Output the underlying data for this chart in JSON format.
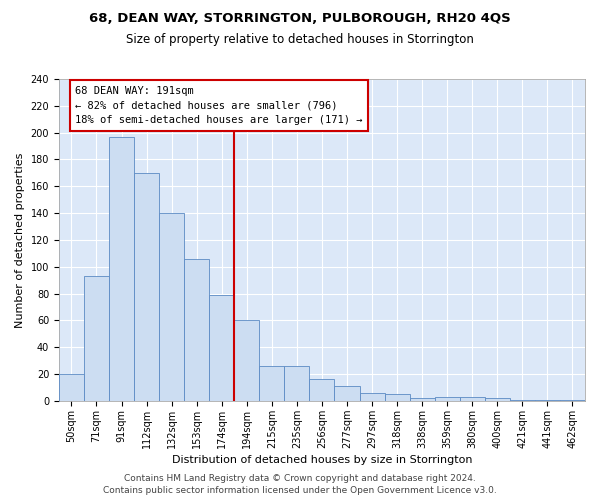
{
  "title": "68, DEAN WAY, STORRINGTON, PULBOROUGH, RH20 4QS",
  "subtitle": "Size of property relative to detached houses in Storrington",
  "xlabel": "Distribution of detached houses by size in Storrington",
  "ylabel": "Number of detached properties",
  "categories": [
    "50sqm",
    "71sqm",
    "91sqm",
    "112sqm",
    "132sqm",
    "153sqm",
    "174sqm",
    "194sqm",
    "215sqm",
    "235sqm",
    "256sqm",
    "277sqm",
    "297sqm",
    "318sqm",
    "338sqm",
    "359sqm",
    "380sqm",
    "400sqm",
    "421sqm",
    "441sqm",
    "462sqm"
  ],
  "values": [
    20,
    93,
    197,
    170,
    140,
    106,
    79,
    60,
    26,
    26,
    16,
    11,
    6,
    5,
    2,
    3,
    3,
    2,
    1,
    1,
    1
  ],
  "bar_color": "#ccddf2",
  "bar_edge_color": "#5b8ac4",
  "highlight_color": "#cc0000",
  "annotation_text": "68 DEAN WAY: 191sqm\n← 82% of detached houses are smaller (796)\n18% of semi-detached houses are larger (171) →",
  "annotation_box_color": "#cc0000",
  "ylim": [
    0,
    240
  ],
  "yticks": [
    0,
    20,
    40,
    60,
    80,
    100,
    120,
    140,
    160,
    180,
    200,
    220,
    240
  ],
  "footer_line1": "Contains HM Land Registry data © Crown copyright and database right 2024.",
  "footer_line2": "Contains public sector information licensed under the Open Government Licence v3.0.",
  "background_color": "#dce8f8",
  "grid_color": "#ffffff",
  "title_fontsize": 9.5,
  "subtitle_fontsize": 8.5,
  "axis_label_fontsize": 8,
  "tick_fontsize": 7,
  "annotation_fontsize": 7.5,
  "footer_fontsize": 6.5
}
